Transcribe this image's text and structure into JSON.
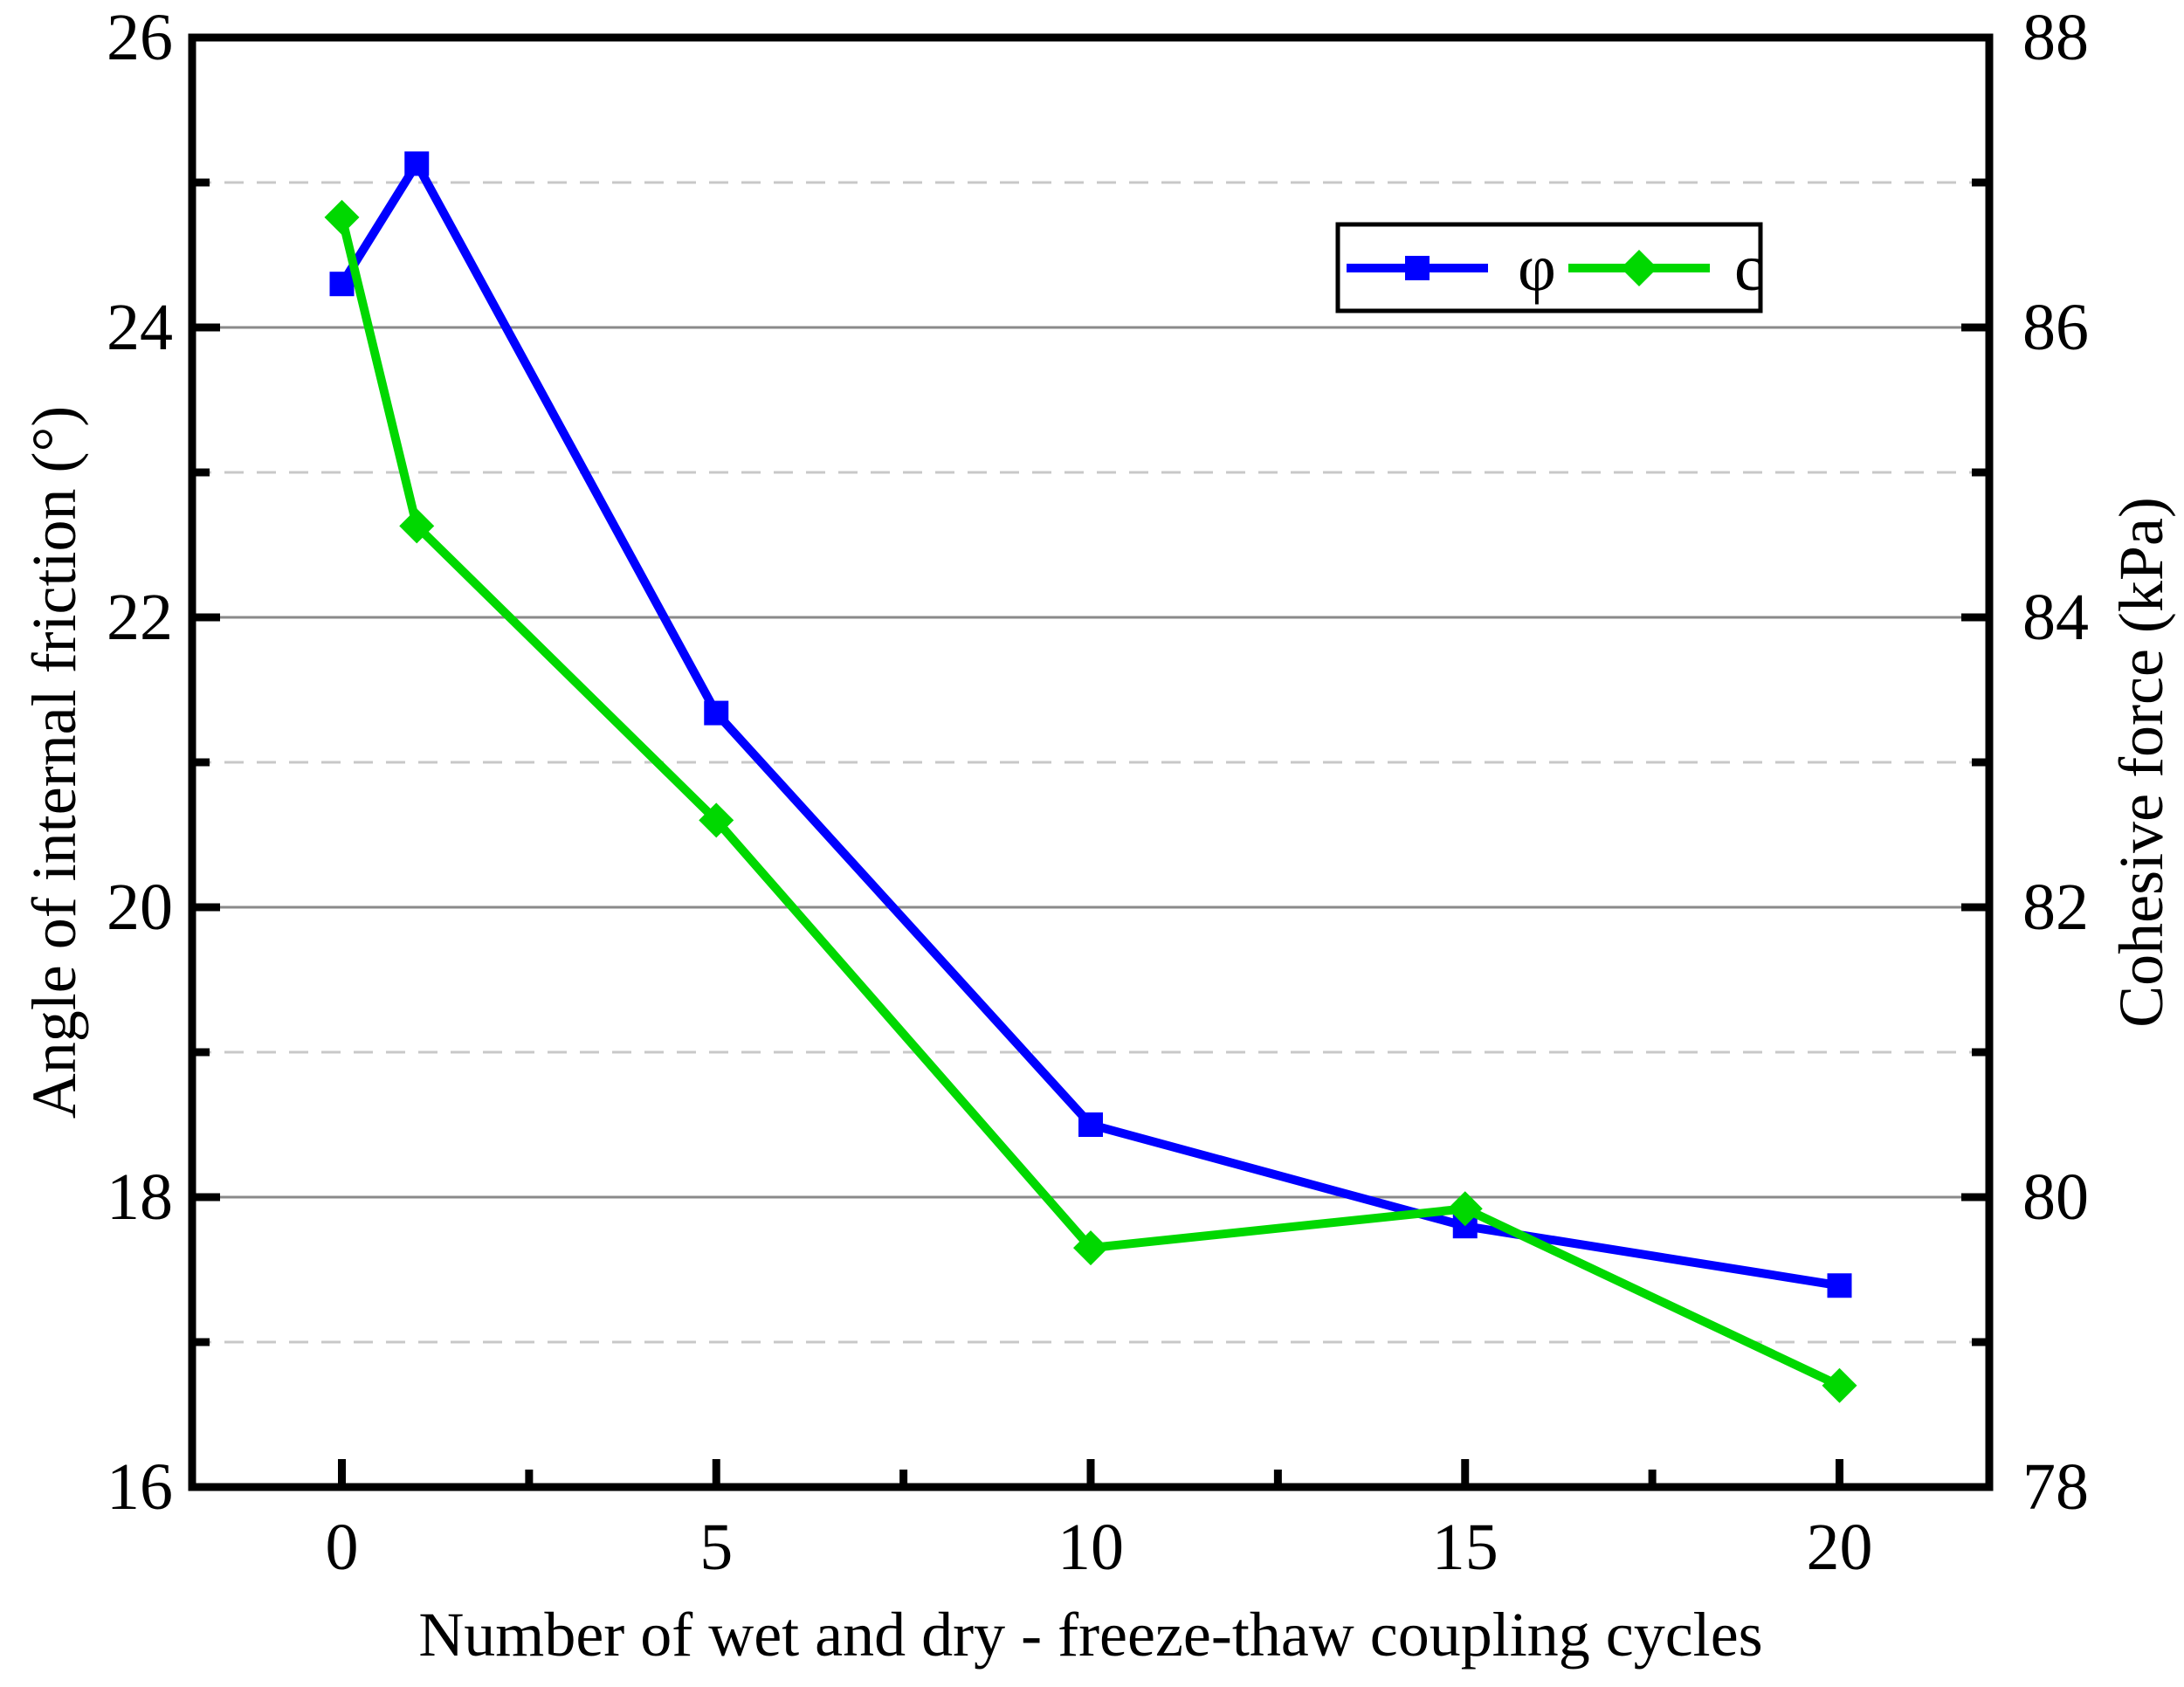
{
  "chart_data": {
    "type": "line",
    "title": "",
    "xlabel": "Number of wet and dry - freeze-thaw coupling cycles",
    "ylabel_left": "Angle of internal friction (°)",
    "ylabel_right": "Cohesive force (kPa)",
    "x": [
      0,
      1,
      5,
      10,
      15,
      20
    ],
    "series": [
      {
        "name": "φ",
        "axis": "left",
        "color": "#0000ff",
        "marker": "square",
        "values": [
          24.3,
          25.13,
          21.34,
          18.5,
          17.8,
          17.39
        ]
      },
      {
        "name": "c",
        "axis": "right",
        "color": "#00d800",
        "marker": "diamond",
        "values": [
          86.76,
          84.63,
          82.6,
          79.65,
          79.92,
          78.7
        ]
      }
    ],
    "x_range": [
      -2,
      22
    ],
    "x_major_ticks": [
      0,
      5,
      10,
      15,
      20
    ],
    "x_minor_ticks": [
      2.5,
      7.5,
      12.5,
      17.5
    ],
    "left_range": [
      16,
      26
    ],
    "left_major_ticks": [
      16,
      18,
      20,
      22,
      24,
      26
    ],
    "left_minor_ticks": [
      17,
      19,
      21,
      23,
      25
    ],
    "right_range": [
      78,
      88
    ],
    "right_major_ticks": [
      78,
      80,
      82,
      84,
      86,
      88
    ],
    "right_minor_ticks": [
      79,
      81,
      83,
      85,
      87
    ],
    "grid": {
      "solid_lines_at_left_values": [
        18,
        20,
        22,
        24
      ],
      "dashed_lines_at_left_values": [
        17,
        19,
        21,
        23,
        25
      ],
      "solid_color": "#8a8a8a",
      "dashed_color": "#c8c8c8"
    },
    "legend": {
      "position": "upper-right-inside",
      "items": [
        "φ",
        "c"
      ]
    },
    "style": {
      "axis_color": "#000000",
      "background": "#ffffff"
    }
  }
}
